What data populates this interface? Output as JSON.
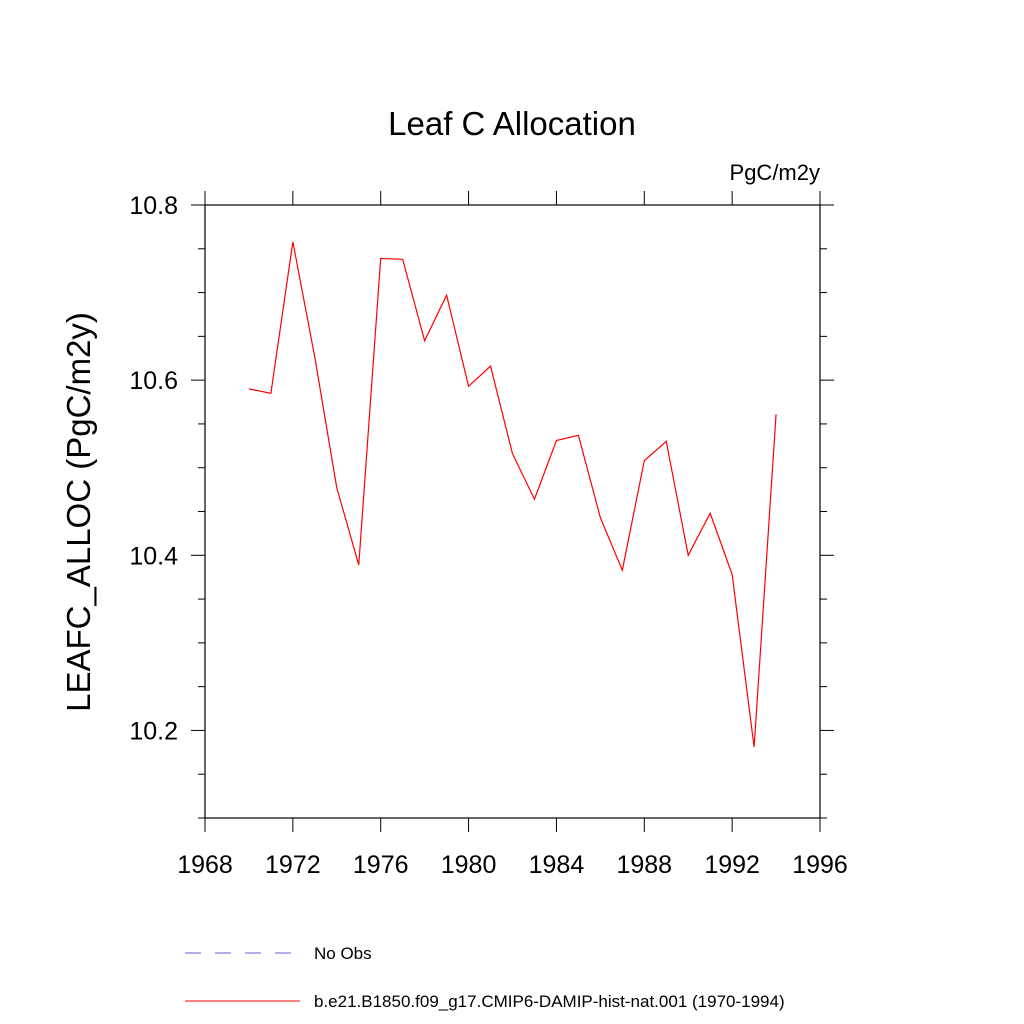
{
  "chart_data": {
    "type": "line",
    "title": "Leaf C Allocation",
    "units_label": "PgC/m2y",
    "xlabel": "",
    "ylabel": "LEAFC_ALLOC  (PgC/m2y)",
    "xlim": [
      1968,
      1996
    ],
    "ylim": [
      10.1,
      10.8
    ],
    "x_ticks": [
      1968,
      1972,
      1976,
      1980,
      1984,
      1988,
      1992,
      1996
    ],
    "x_tick_labels": [
      "1968",
      "1972",
      "1976",
      "1980",
      "1984",
      "1988",
      "1992",
      "1996"
    ],
    "y_ticks": [
      10.2,
      10.4,
      10.6,
      10.8
    ],
    "y_tick_labels": [
      "10.2",
      "10.4",
      "10.6",
      "10.8"
    ],
    "grid": false,
    "legend_position": "bottom",
    "series": [
      {
        "name": "No Obs",
        "color": "#6b5bd6",
        "style": "dashed",
        "x": [],
        "values": []
      },
      {
        "name": "b.e21.B1850.f09_g17.CMIP6-DAMIP-hist-nat.001 (1970-1994)",
        "color": "#ff0000",
        "style": "solid",
        "x": [
          1970,
          1971,
          1972,
          1973,
          1974,
          1975,
          1976,
          1977,
          1978,
          1979,
          1980,
          1981,
          1982,
          1983,
          1984,
          1985,
          1986,
          1987,
          1988,
          1989,
          1990,
          1991,
          1992,
          1993,
          1994
        ],
        "values": [
          10.59,
          10.585,
          10.758,
          10.626,
          10.477,
          10.389,
          10.739,
          10.738,
          10.645,
          10.697,
          10.593,
          10.616,
          10.516,
          10.464,
          10.531,
          10.537,
          10.443,
          10.383,
          10.508,
          10.53,
          10.4,
          10.448,
          10.378,
          10.181,
          10.561
        ]
      }
    ]
  }
}
